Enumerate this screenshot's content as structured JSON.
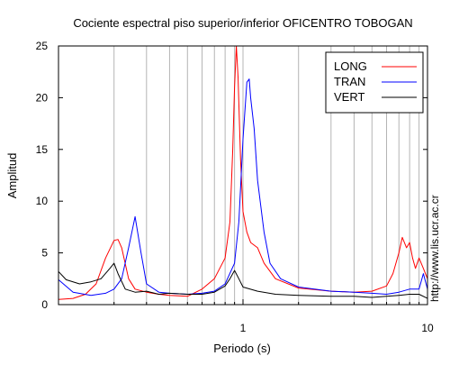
{
  "chart_data": {
    "type": "line",
    "title": "Cociente espectral piso superior/inferior OFICENTRO TOBOGAN",
    "xlabel": "Periodo (s)",
    "ylabel": "Amplitud",
    "x_scale": "log",
    "xlim": [
      0.1,
      10
    ],
    "ylim": [
      0,
      25
    ],
    "x_ticks": [
      {
        "value": 1,
        "label": "1"
      },
      {
        "value": 10,
        "label": "10"
      }
    ],
    "y_ticks": [
      {
        "value": 0,
        "label": "0"
      },
      {
        "value": 5,
        "label": "5"
      },
      {
        "value": 10,
        "label": "10"
      },
      {
        "value": 15,
        "label": "15"
      },
      {
        "value": 20,
        "label": "20"
      },
      {
        "value": 25,
        "label": "25"
      }
    ],
    "grid": {
      "x": true,
      "y": false
    },
    "legend_position": "top-right",
    "side_annotation": "http://www.lis.ucr.ac.cr",
    "series": [
      {
        "name": "LONG",
        "color": "#ff0000",
        "points": [
          [
            0.1,
            0.5
          ],
          [
            0.12,
            0.6
          ],
          [
            0.14,
            1.0
          ],
          [
            0.16,
            2.0
          ],
          [
            0.18,
            4.5
          ],
          [
            0.2,
            6.2
          ],
          [
            0.21,
            6.3
          ],
          [
            0.22,
            5.5
          ],
          [
            0.24,
            2.5
          ],
          [
            0.26,
            1.5
          ],
          [
            0.3,
            1.2
          ],
          [
            0.35,
            1.0
          ],
          [
            0.4,
            0.9
          ],
          [
            0.5,
            0.8
          ],
          [
            0.6,
            1.5
          ],
          [
            0.7,
            2.5
          ],
          [
            0.8,
            4.5
          ],
          [
            0.85,
            8.0
          ],
          [
            0.88,
            15.0
          ],
          [
            0.9,
            21.0
          ],
          [
            0.92,
            25.0
          ],
          [
            0.94,
            22.0
          ],
          [
            0.97,
            14.0
          ],
          [
            1.0,
            9.0
          ],
          [
            1.05,
            7.0
          ],
          [
            1.1,
            6.0
          ],
          [
            1.2,
            5.5
          ],
          [
            1.3,
            4.0
          ],
          [
            1.5,
            2.5
          ],
          [
            2.0,
            1.6
          ],
          [
            3.0,
            1.3
          ],
          [
            4.0,
            1.2
          ],
          [
            5.0,
            1.3
          ],
          [
            6.0,
            1.8
          ],
          [
            6.5,
            3.0
          ],
          [
            7.0,
            5.0
          ],
          [
            7.3,
            6.5
          ],
          [
            7.7,
            5.5
          ],
          [
            8.0,
            6.0
          ],
          [
            8.3,
            4.5
          ],
          [
            8.6,
            3.5
          ],
          [
            9.0,
            4.5
          ],
          [
            9.5,
            3.5
          ],
          [
            10.0,
            2.5
          ]
        ]
      },
      {
        "name": "TRAN",
        "color": "#0000ff",
        "points": [
          [
            0.1,
            2.4
          ],
          [
            0.12,
            1.2
          ],
          [
            0.15,
            0.9
          ],
          [
            0.18,
            1.1
          ],
          [
            0.2,
            1.5
          ],
          [
            0.22,
            2.5
          ],
          [
            0.24,
            5.5
          ],
          [
            0.26,
            8.5
          ],
          [
            0.28,
            5.0
          ],
          [
            0.3,
            2.0
          ],
          [
            0.35,
            1.2
          ],
          [
            0.4,
            1.1
          ],
          [
            0.5,
            1.0
          ],
          [
            0.6,
            1.1
          ],
          [
            0.7,
            1.3
          ],
          [
            0.8,
            2.0
          ],
          [
            0.9,
            4.0
          ],
          [
            0.95,
            8.0
          ],
          [
            1.0,
            16.0
          ],
          [
            1.05,
            21.5
          ],
          [
            1.08,
            21.8
          ],
          [
            1.1,
            20.0
          ],
          [
            1.15,
            17.0
          ],
          [
            1.2,
            12.0
          ],
          [
            1.3,
            7.0
          ],
          [
            1.4,
            4.0
          ],
          [
            1.6,
            2.5
          ],
          [
            2.0,
            1.7
          ],
          [
            3.0,
            1.3
          ],
          [
            4.0,
            1.2
          ],
          [
            5.0,
            1.1
          ],
          [
            6.0,
            1.0
          ],
          [
            7.0,
            1.2
          ],
          [
            8.0,
            1.5
          ],
          [
            9.0,
            1.5
          ],
          [
            9.5,
            3.0
          ],
          [
            10.0,
            1.5
          ]
        ]
      },
      {
        "name": "VERT",
        "color": "#000000",
        "points": [
          [
            0.1,
            3.2
          ],
          [
            0.11,
            2.4
          ],
          [
            0.13,
            2.0
          ],
          [
            0.15,
            2.2
          ],
          [
            0.17,
            2.5
          ],
          [
            0.19,
            3.5
          ],
          [
            0.2,
            4.0
          ],
          [
            0.21,
            3.0
          ],
          [
            0.23,
            1.5
          ],
          [
            0.26,
            1.2
          ],
          [
            0.3,
            1.3
          ],
          [
            0.35,
            1.0
          ],
          [
            0.4,
            1.1
          ],
          [
            0.5,
            1.0
          ],
          [
            0.6,
            1.0
          ],
          [
            0.7,
            1.2
          ],
          [
            0.8,
            1.8
          ],
          [
            0.85,
            2.5
          ],
          [
            0.9,
            3.3
          ],
          [
            0.95,
            2.5
          ],
          [
            1.0,
            1.7
          ],
          [
            1.2,
            1.3
          ],
          [
            1.5,
            1.0
          ],
          [
            2.0,
            0.9
          ],
          [
            3.0,
            0.8
          ],
          [
            4.0,
            0.8
          ],
          [
            5.0,
            0.7
          ],
          [
            6.0,
            0.8
          ],
          [
            7.0,
            0.9
          ],
          [
            8.0,
            1.0
          ],
          [
            9.0,
            1.0
          ],
          [
            10.0,
            0.6
          ]
        ]
      }
    ]
  }
}
